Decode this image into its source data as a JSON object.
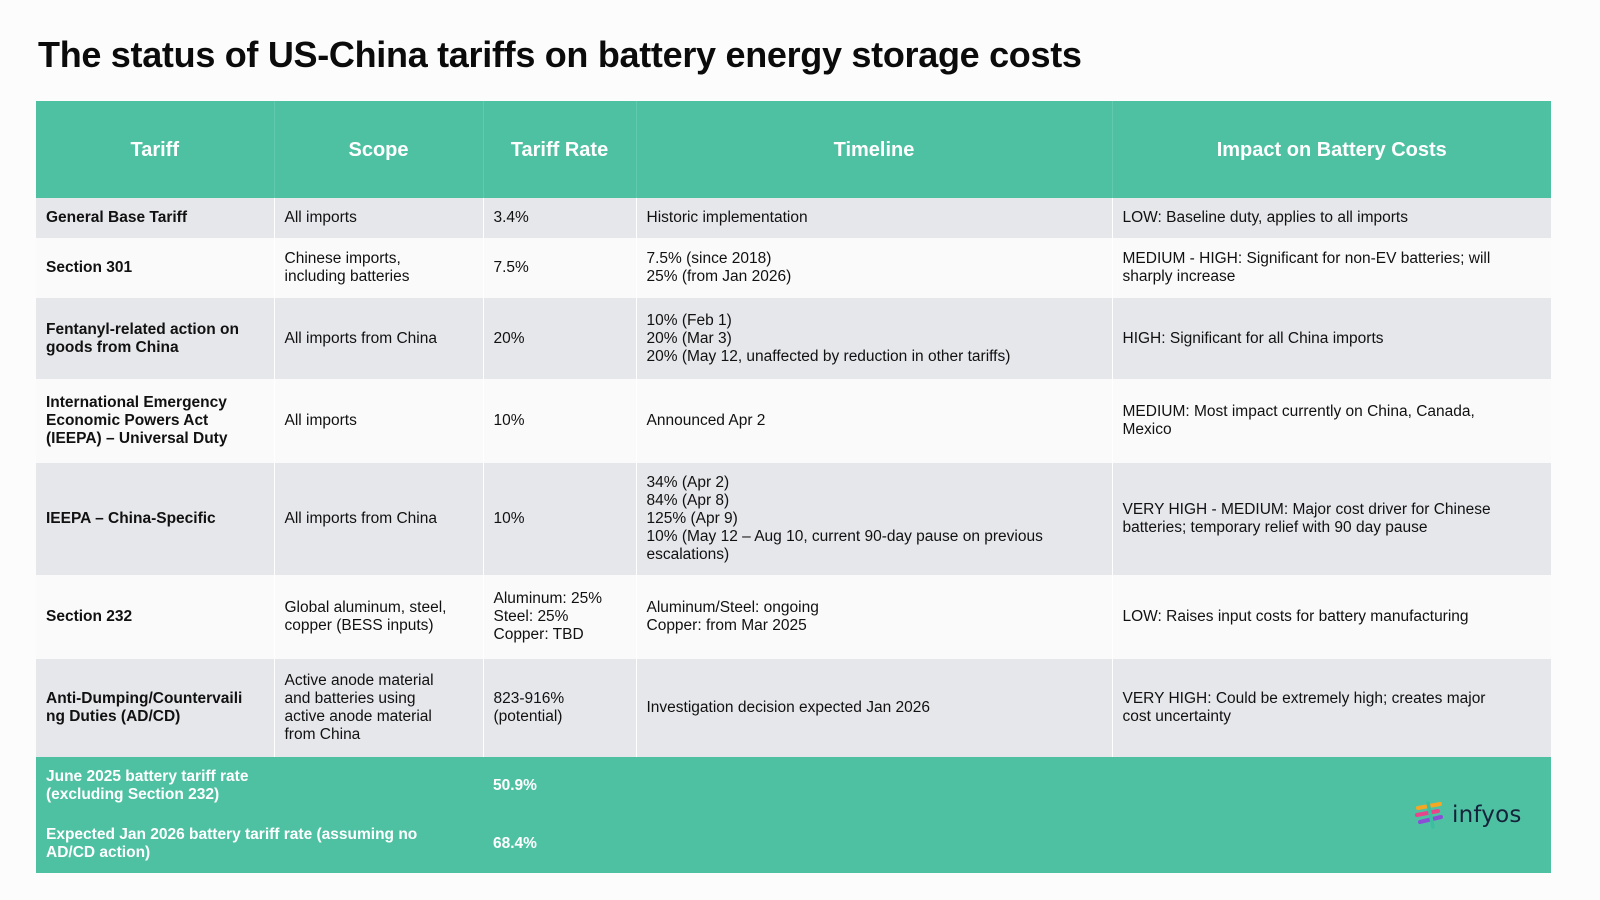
{
  "title": "The status of US-China tariffs on battery energy storage costs",
  "headers": [
    "Tariff",
    "Scope",
    "Tariff Rate",
    "Timeline",
    "Impact on Battery Costs"
  ],
  "rows": [
    {
      "tariff": "General Base Tariff",
      "scope": "All imports",
      "rate": "3.4%",
      "timeline": "Historic implementation",
      "impact": "LOW: Baseline duty, applies to all imports"
    },
    {
      "tariff": "Section 301",
      "scope": "Chinese imports,\nincluding batteries",
      "rate": "7.5%",
      "timeline": "7.5% (since 2018)\n25% (from Jan 2026)",
      "impact": "MEDIUM - HIGH: Significant for non-EV batteries; will\nsharply increase"
    },
    {
      "tariff": "Fentanyl-related action on\ngoods from China",
      "scope": "All imports from China",
      "rate": "20%",
      "timeline": "10% (Feb 1)\n20% (Mar 3)\n20% (May 12, unaffected by reduction in other tariffs)",
      "impact": "HIGH: Significant for all China imports"
    },
    {
      "tariff": "International Emergency\nEconomic Powers Act\n(IEEPA) – Universal Duty",
      "scope": "All imports",
      "rate": "10%",
      "timeline": "Announced Apr 2",
      "impact": "MEDIUM: Most impact currently on China, Canada,\nMexico"
    },
    {
      "tariff": "IEEPA – China-Specific",
      "scope": "All imports from China",
      "rate": "10%",
      "timeline": "34% (Apr 2)\n84% (Apr 8)\n125% (Apr 9)\n10% (May 12 – Aug 10, current 90-day pause on previous\nescalations)",
      "impact": "VERY HIGH - MEDIUM: Major cost driver for Chinese\nbatteries; temporary relief with 90 day pause"
    },
    {
      "tariff": "Section 232",
      "scope": "Global aluminum, steel,\ncopper (BESS inputs)",
      "rate": "Aluminum: 25%\nSteel: 25%\nCopper: TBD",
      "timeline": "Aluminum/Steel: ongoing\nCopper: from Mar 2025",
      "impact": "LOW: Raises input costs for battery manufacturing"
    },
    {
      "tariff": "Anti-Dumping/Countervaili\nng Duties (AD/CD)",
      "scope": "Active anode material\nand batteries using\nactive anode material\nfrom China",
      "rate": "823-916%\n(potential)",
      "timeline": "Investigation decision expected Jan 2026",
      "impact": "VERY HIGH: Could be extremely high; creates major\ncost uncertainty"
    }
  ],
  "summary": [
    {
      "label": "June 2025 battery tariff rate\n(excluding Section 232)",
      "value": "50.9%"
    },
    {
      "label": "Expected Jan 2026 battery tariff rate (assuming no\nAD/CD action)",
      "value": "68.4%"
    }
  ],
  "logo": {
    "text": "infyos",
    "icon": "infyos-logo-icon"
  },
  "colors": {
    "accent": "#4fc1a3",
    "row_shade": "#e6e7eb",
    "row_plain": "#fafafa"
  }
}
